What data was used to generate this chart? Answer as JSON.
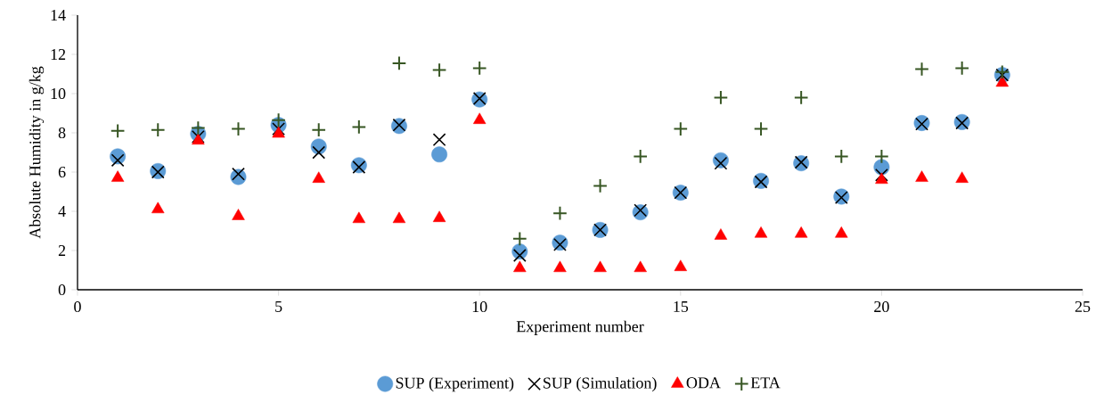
{
  "chart_data": {
    "type": "scatter",
    "xlabel": "Experiment number",
    "ylabel": "Absolute Humidity in g/kg",
    "xlim": [
      0,
      25
    ],
    "xticks": [
      0,
      5,
      10,
      15,
      20,
      25
    ],
    "ylim": [
      0,
      14
    ],
    "yticks": [
      0,
      2,
      4,
      6,
      8,
      10,
      12,
      14
    ],
    "grid": false,
    "legend": "bottom",
    "x": [
      1,
      2,
      3,
      4,
      5,
      6,
      7,
      8,
      9,
      10,
      11,
      12,
      13,
      14,
      15,
      16,
      17,
      18,
      19,
      20,
      21,
      22,
      23
    ],
    "series": [
      {
        "name": "SUP (Experiment)",
        "color": "#5b9bd5",
        "marker": "circle",
        "values": [
          6.8,
          6.05,
          7.95,
          5.75,
          8.4,
          7.3,
          6.35,
          8.35,
          6.9,
          9.7,
          1.95,
          2.4,
          3.05,
          3.95,
          4.95,
          6.6,
          5.55,
          6.45,
          4.75,
          6.25,
          8.5,
          8.55,
          10.95
        ]
      },
      {
        "name": "SUP (Simulation)",
        "color": "#000000",
        "marker": "cross",
        "values": [
          6.6,
          6.0,
          7.8,
          5.9,
          8.2,
          7.0,
          6.25,
          8.4,
          7.65,
          9.75,
          1.75,
          2.3,
          3.05,
          4.05,
          4.95,
          6.45,
          5.5,
          6.5,
          4.7,
          5.85,
          8.45,
          8.5,
          10.95
        ]
      },
      {
        "name": "ODA",
        "color": "#ff0000",
        "marker": "triangle",
        "values": [
          5.7,
          4.1,
          7.6,
          3.75,
          7.95,
          5.65,
          3.6,
          3.6,
          3.65,
          8.65,
          1.1,
          1.1,
          1.1,
          1.1,
          1.15,
          2.75,
          2.85,
          2.85,
          2.85,
          5.6,
          5.7,
          5.65,
          10.55
        ]
      },
      {
        "name": "ETA",
        "color": "#375623",
        "marker": "plus",
        "values": [
          8.1,
          8.15,
          8.25,
          8.2,
          8.65,
          8.15,
          8.3,
          11.55,
          11.2,
          11.3,
          2.6,
          3.9,
          5.3,
          6.8,
          8.2,
          9.8,
          8.2,
          9.8,
          6.8,
          6.8,
          11.25,
          11.3,
          11.1
        ]
      }
    ]
  }
}
